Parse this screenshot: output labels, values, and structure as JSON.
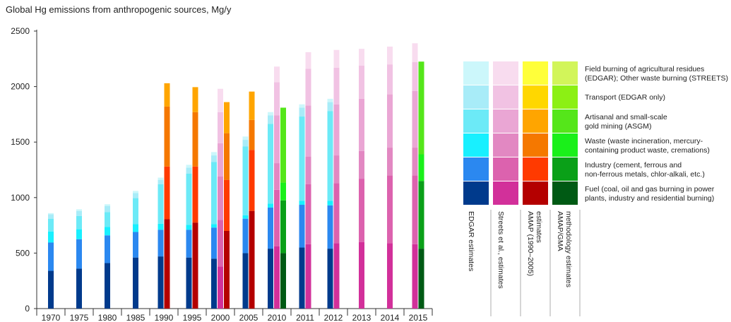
{
  "chart_data": {
    "type": "bar",
    "title": "Global Hg emissions from anthropogenic sources, Mg/y",
    "xlabel": "",
    "ylabel": "",
    "ylim": [
      0,
      2500
    ],
    "yticks": [
      0,
      500,
      1000,
      1500,
      2000,
      2500
    ],
    "grid": false,
    "legend_position": "right",
    "categories": [
      "Fuel",
      "Industry",
      "Waste",
      "ASGM",
      "Transport",
      "Field burning"
    ],
    "x_tick_labels": [
      "1970",
      "1975",
      "1980",
      "1985",
      "1990",
      "1995",
      "2000",
      "2005",
      "2010",
      "2011",
      "2012",
      "2013",
      "2014",
      "2015"
    ],
    "palettes": {
      "EDGAR": [
        "#003a8c",
        "#2b88f0",
        "#18f0ff",
        "#6ceaf7",
        "#a8ecf8",
        "#ccf7fb"
      ],
      "Streets": [
        "#d2309a",
        "#dc62ae",
        "#e288c2",
        "#eaa6d4",
        "#f1c2e3",
        "#f8dcef"
      ],
      "AMAP": [
        "#b40000",
        "#ff3a00",
        "#f57800",
        "#ffa500",
        "#ffd700",
        "#ffff3a"
      ],
      "GMA": [
        "#005a14",
        "#0aa018",
        "#1af01a",
        "#55e61a",
        "#8cf014",
        "#d2f55a"
      ]
    },
    "series_groups": [
      {
        "name": "EDGAR estimates",
        "palette": "EDGAR",
        "bars": [
          {
            "year": "1970",
            "stack": [
              340,
              255,
              100,
              115,
              40,
              10
            ]
          },
          {
            "year": "1975",
            "stack": [
              360,
              265,
              90,
              120,
              45,
              15
            ]
          },
          {
            "year": "1980",
            "stack": [
              410,
              250,
              75,
              135,
              55,
              15
            ]
          },
          {
            "year": "1985",
            "stack": [
              460,
              230,
              70,
              235,
              45,
              20
            ]
          },
          {
            "year": "1990",
            "stack": [
              470,
              240,
              55,
              355,
              40,
              20
            ]
          },
          {
            "year": "1995",
            "stack": [
              460,
              250,
              45,
              460,
              55,
              25
            ]
          },
          {
            "year": "2000",
            "stack": [
              450,
              280,
              30,
              560,
              60,
              30
            ]
          },
          {
            "year": "2005",
            "stack": [
              500,
              310,
              30,
              620,
              60,
              30
            ]
          },
          {
            "year": "2010",
            "stack": [
              540,
              370,
              35,
              720,
              75,
              30
            ]
          },
          {
            "year": "2011",
            "stack": [
              550,
              385,
              35,
              760,
              80,
              30
            ]
          },
          {
            "year": "2012",
            "stack": [
              540,
              390,
              40,
              810,
              80,
              30
            ]
          }
        ]
      },
      {
        "name": "Streets et al., estimates",
        "palette": "Streets",
        "bars": [
          {
            "year": "2000",
            "stack": [
              380,
              420,
              390,
              300,
              280,
              210
            ]
          },
          {
            "year": "2010",
            "stack": [
              560,
              510,
              240,
              430,
              300,
              140
            ]
          },
          {
            "year": "2011",
            "stack": [
              580,
              540,
              250,
              460,
              330,
              150
            ]
          },
          {
            "year": "2012",
            "stack": [
              590,
              540,
              250,
              460,
              330,
              160
            ]
          },
          {
            "year": "2013",
            "stack": [
              600,
              570,
              250,
              470,
              300,
              150
            ]
          },
          {
            "year": "2014",
            "stack": [
              590,
              610,
              250,
              480,
              270,
              160
            ]
          },
          {
            "year": "2015",
            "stack": [
              580,
              620,
              250,
              510,
              260,
              170
            ]
          }
        ]
      },
      {
        "name": "AMAP (1990–2005) estimates",
        "palette": "AMAP",
        "bars": [
          {
            "year": "1990",
            "stack": [
              805,
              475,
              540,
              210,
              0,
              0
            ]
          },
          {
            "year": "1995",
            "stack": [
              775,
              505,
              490,
              225,
              0,
              0
            ]
          },
          {
            "year": "2000",
            "stack": [
              700,
              460,
              420,
              280,
              0,
              0
            ]
          },
          {
            "year": "2005",
            "stack": [
              880,
              550,
              270,
              255,
              0,
              0
            ]
          }
        ]
      },
      {
        "name": "AMAP/GMA methodology estimates",
        "palette": "GMA",
        "bars": [
          {
            "year": "2010",
            "stack": [
              500,
              475,
              160,
              675,
              0,
              0
            ]
          },
          {
            "year": "2015",
            "stack": [
              540,
              610,
              240,
              835,
              0,
              0
            ]
          }
        ]
      }
    ],
    "legend_rows": [
      "Field burning of agricultural residues (EDGAR); Other waste burning (STREETS)",
      "Transport (EDGAR only)",
      "Artisanal and small-scale gold mining (ASGM)",
      "Waste (waste incineration, mercury-containing product waste, cremations)",
      "Industry (cement, ferrous and non-ferrous metals, chlor-alkali, etc.)",
      "Fuel (coal, oil and gas burning in power plants, industry and residential burning)"
    ],
    "legend_columns": [
      "EDGAR estimates",
      "Streets et al., estimates",
      "AMAP (1990–2005) estimates",
      "AMAP/GMA methodology estimates"
    ]
  }
}
